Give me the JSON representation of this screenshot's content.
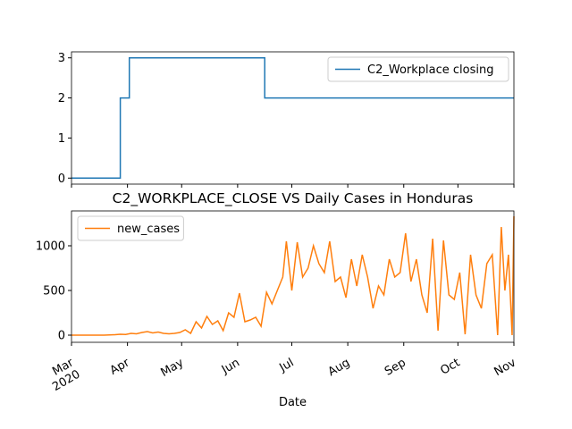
{
  "chart_data": [
    {
      "type": "line",
      "x": [
        0,
        27,
        27,
        32,
        32,
        107,
        107,
        245
      ],
      "series": [
        {
          "name": "C2_Workplace closing",
          "color": "#1f77b4",
          "values": [
            0,
            0,
            2,
            2,
            3,
            3,
            2,
            2
          ]
        }
      ],
      "xlim": [
        0,
        245
      ],
      "xticks": [
        0,
        31,
        61,
        92,
        122,
        153,
        184,
        214,
        245
      ],
      "ylim": [
        -0.15,
        3.15
      ],
      "yticks": [
        0,
        1,
        2,
        3
      ],
      "legend": "upper right"
    },
    {
      "type": "line",
      "title": "C2_WORKPLACE_CLOSE VS Daily Cases in Honduras",
      "x_label": "Date",
      "x": [
        0,
        3,
        6,
        9,
        12,
        15,
        18,
        21,
        24,
        27,
        30,
        33,
        36,
        39,
        42,
        45,
        48,
        51,
        54,
        57,
        60,
        63,
        66,
        69,
        72,
        75,
        78,
        81,
        84,
        87,
        90,
        93,
        96,
        99,
        102,
        105,
        108,
        111,
        114,
        117,
        119,
        122,
        125,
        128,
        131,
        134,
        137,
        140,
        143,
        146,
        149,
        152,
        155,
        158,
        161,
        164,
        167,
        170,
        173,
        176,
        179,
        182,
        185,
        188,
        191,
        194,
        197,
        200,
        203,
        206,
        209,
        212,
        215,
        218,
        221,
        224,
        227,
        230,
        233,
        236,
        238,
        240,
        242,
        244,
        245
      ],
      "series": [
        {
          "name": "new_cases",
          "color": "#ff7f0e",
          "values": [
            0,
            0,
            0,
            0,
            0,
            0,
            0,
            2,
            5,
            10,
            8,
            20,
            15,
            30,
            40,
            25,
            35,
            20,
            15,
            20,
            30,
            60,
            20,
            150,
            80,
            210,
            120,
            160,
            50,
            250,
            200,
            470,
            150,
            170,
            200,
            100,
            480,
            350,
            500,
            650,
            1050,
            500,
            1040,
            650,
            750,
            1000,
            800,
            700,
            1050,
            600,
            650,
            420,
            850,
            550,
            900,
            650,
            300,
            550,
            450,
            850,
            650,
            700,
            1140,
            600,
            850,
            450,
            250,
            1080,
            50,
            1060,
            450,
            400,
            700,
            10,
            900,
            450,
            300,
            800,
            900,
            0,
            1210,
            500,
            900,
            0,
            1330
          ]
        }
      ],
      "xlim": [
        0,
        245
      ],
      "xticks": [
        {
          "value": 0,
          "label": "Mar\n2020"
        },
        {
          "value": 31,
          "label": "Apr"
        },
        {
          "value": 61,
          "label": "May"
        },
        {
          "value": 92,
          "label": "Jun"
        },
        {
          "value": 122,
          "label": "Jul"
        },
        {
          "value": 153,
          "label": "Aug"
        },
        {
          "value": 184,
          "label": "Sep"
        },
        {
          "value": 214,
          "label": "Oct"
        },
        {
          "value": 245,
          "label": "Nov"
        }
      ],
      "ylim": [
        -80,
        1390
      ],
      "yticks": [
        0,
        500,
        1000
      ],
      "legend": "upper left"
    }
  ]
}
